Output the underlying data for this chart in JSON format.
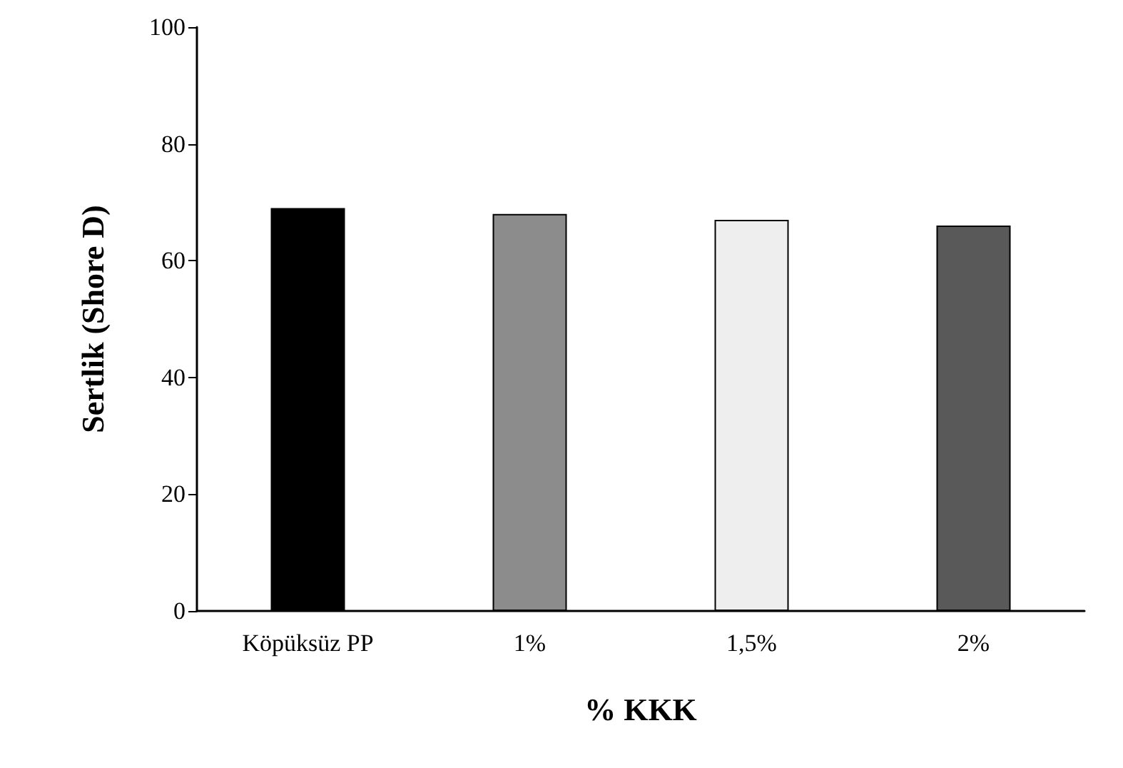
{
  "chart_data": {
    "type": "bar",
    "xlabel": "% KKK",
    "ylabel": "Sertlik (Shore D)",
    "categories": [
      "Köpüksüz PP",
      "1%",
      "1,5%",
      "2%"
    ],
    "values": [
      69,
      68,
      67,
      66
    ],
    "colors": [
      "#000000",
      "#8c8c8c",
      "#eeeeee",
      "#595959"
    ],
    "ylim": [
      0,
      100
    ],
    "yticks": [
      0,
      20,
      40,
      60,
      80,
      100
    ],
    "grid": false
  }
}
